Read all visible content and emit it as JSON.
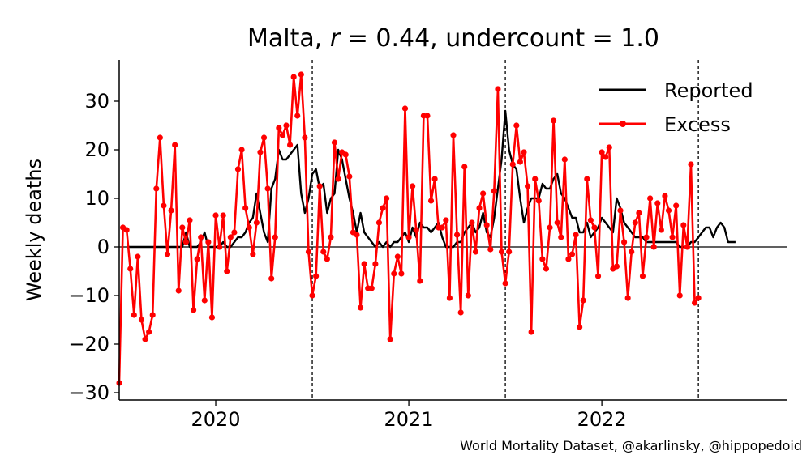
{
  "chart_data": {
    "type": "line",
    "title_prefix": "Malta, ",
    "title_r_var": "r",
    "title_r_value": " = 0.44, undercount = 1.0",
    "ylabel": "Weekly deaths",
    "xlabel": "",
    "credit": "World Mortality Dataset, @akarlinsky, @hippopedoid",
    "ylim": [
      -31.5,
      38.5
    ],
    "xlim": [
      0,
      180
    ],
    "yticks": [
      -30,
      -20,
      -10,
      0,
      10,
      20,
      30
    ],
    "ytick_labels": [
      "−30",
      "−20",
      "−10",
      "0",
      "10",
      "20",
      "30"
    ],
    "xticks": [
      {
        "week": 26,
        "label": "2020"
      },
      {
        "week": 78,
        "label": "2021"
      },
      {
        "week": 130,
        "label": "2022"
      }
    ],
    "vlines_week": [
      52,
      104,
      156
    ],
    "zero_line": true,
    "legend_position": "top-right",
    "series": [
      {
        "name": "Reported",
        "color": "#000000",
        "marker": false,
        "start_week": 2,
        "values": [
          0,
          0,
          0,
          0,
          0,
          0,
          0,
          0,
          0,
          0,
          0,
          0,
          0,
          0,
          0,
          0,
          3,
          0,
          0,
          0,
          1,
          3,
          0,
          0,
          0,
          0,
          1,
          0,
          0,
          1,
          2,
          2,
          3,
          5,
          6,
          11,
          7,
          3,
          1,
          12,
          14,
          20,
          18,
          18,
          19,
          20,
          21,
          11,
          7,
          10,
          15,
          16,
          12,
          13,
          7,
          10,
          11,
          20,
          18,
          14,
          10,
          7,
          3,
          7,
          3,
          2,
          1,
          0,
          1,
          0,
          1,
          0,
          1,
          1,
          2,
          3,
          1,
          4,
          2,
          5,
          4,
          4,
          3,
          4,
          5,
          2,
          0,
          0,
          0,
          1,
          1,
          3,
          4,
          5,
          3,
          4,
          7,
          3,
          2,
          6,
          12,
          18,
          28,
          20,
          17,
          16,
          10,
          5,
          8,
          10,
          10,
          10,
          13,
          12,
          12,
          14,
          15,
          11,
          10,
          8,
          6,
          6,
          3,
          3,
          5,
          2,
          3,
          4,
          6,
          5,
          4,
          3,
          10,
          8,
          5,
          4,
          3,
          2,
          2,
          2,
          1,
          1,
          1,
          1,
          1,
          1,
          1,
          1,
          1,
          0,
          0,
          0,
          1,
          1,
          2,
          3,
          4,
          4,
          2,
          4,
          5,
          4,
          1,
          1,
          1
        ]
      },
      {
        "name": "Excess",
        "color": "#ff0000",
        "marker": true,
        "start_week": 0,
        "values": [
          -28,
          4,
          3.5,
          -4.5,
          -14,
          -2,
          -15,
          -19,
          -17.5,
          -14,
          12,
          22.5,
          8.5,
          -1.5,
          7.5,
          21,
          -9,
          4,
          1,
          5.5,
          -13,
          -2.5,
          2,
          -11,
          1,
          -14.5,
          6.5,
          0,
          6.5,
          -5,
          2,
          3,
          16,
          20,
          8,
          4,
          -1.5,
          5,
          19.5,
          22.5,
          12,
          -6.5,
          2,
          24.5,
          23,
          25,
          21,
          35,
          27,
          35.5,
          22.5,
          -1,
          -10,
          -6,
          12.5,
          -1,
          -2.5,
          2,
          21.5,
          14,
          19.5,
          19,
          14.5,
          3,
          2.5,
          -12.5,
          -3.5,
          -8.5,
          -8.5,
          -3.5,
          5,
          8,
          10,
          -19,
          -5.5,
          -2,
          -5.5,
          28.5,
          2,
          12.5,
          3.5,
          -7,
          27,
          27,
          9.5,
          14,
          4,
          4,
          5.5,
          -10.5,
          23,
          2.5,
          -13.5,
          16.5,
          -10,
          5,
          -1,
          8,
          11,
          4.5,
          -0.5,
          11.5,
          32.5,
          -1,
          -7.5,
          -1,
          17,
          25,
          17.5,
          19.5,
          12.5,
          -17.5,
          14,
          9.5,
          -2.5,
          -4.5,
          4,
          26,
          5,
          2,
          18,
          -2.5,
          -1.5,
          2.5,
          -16.5,
          -11,
          14,
          5.5,
          4,
          -6,
          19.5,
          18.5,
          20.5,
          -4.5,
          -4,
          7.5,
          1,
          -10.5,
          -1,
          5,
          7,
          -6,
          2,
          10,
          0,
          9,
          3.5,
          10.5,
          7.5,
          2,
          8.5,
          -10,
          4.5,
          0,
          17,
          -11.5,
          -10.5
        ]
      }
    ]
  }
}
